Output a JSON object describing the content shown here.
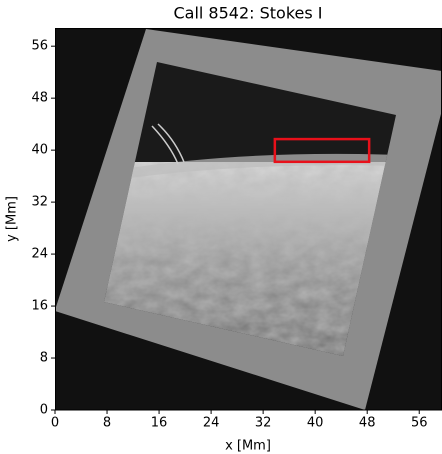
{
  "chart_data": {
    "type": "image",
    "title": "Call 8542: Stokes I",
    "x_label": "x [Mm]",
    "y_label": "y [Mm]",
    "xlim": [
      0,
      59.5
    ],
    "ylim": [
      0,
      58.8
    ],
    "xticks": [
      0,
      8,
      16,
      24,
      32,
      40,
      48,
      56
    ],
    "yticks": [
      0,
      8,
      16,
      24,
      32,
      40,
      48,
      56
    ],
    "rectangle": {
      "x": [
        33.8,
        48.3
      ],
      "y": [
        38.2,
        41.7
      ],
      "color": "#e8101a"
    }
  }
}
